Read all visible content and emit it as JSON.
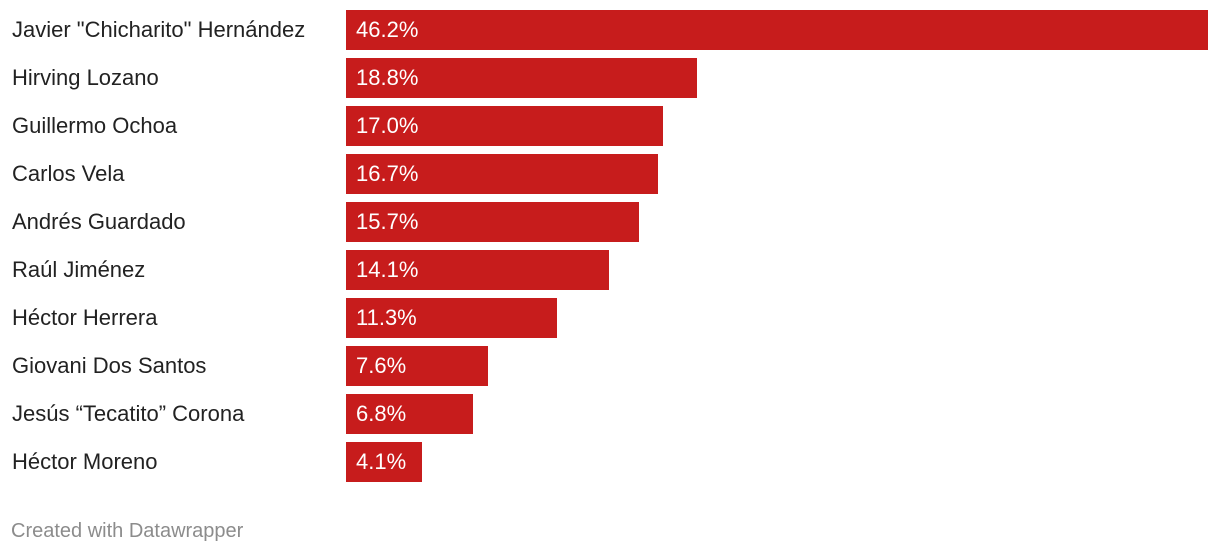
{
  "chart_data": {
    "type": "bar",
    "orientation": "horizontal",
    "categories": [
      "Javier \"Chicharito\" Hernández",
      "Hirving Lozano",
      "Guillermo Ochoa",
      "Carlos Vela",
      "Andrés Guardado",
      "Raúl Jiménez",
      "Héctor Herrera",
      "Giovani Dos Santos",
      "Jesús “Tecatito” Corona",
      "Héctor Moreno"
    ],
    "values": [
      46.2,
      18.8,
      17.0,
      16.7,
      15.7,
      14.1,
      11.3,
      7.6,
      6.8,
      4.1
    ],
    "value_labels": [
      "46.2%",
      "18.8%",
      "17.0%",
      "16.7%",
      "15.7%",
      "14.1%",
      "11.3%",
      "7.6%",
      "6.8%",
      "4.1%"
    ],
    "xlim": [
      0,
      46.2
    ],
    "bar_color": "#c71c1c",
    "grid": false,
    "legend": "none"
  },
  "footer": {
    "credit": "Created with Datawrapper"
  }
}
